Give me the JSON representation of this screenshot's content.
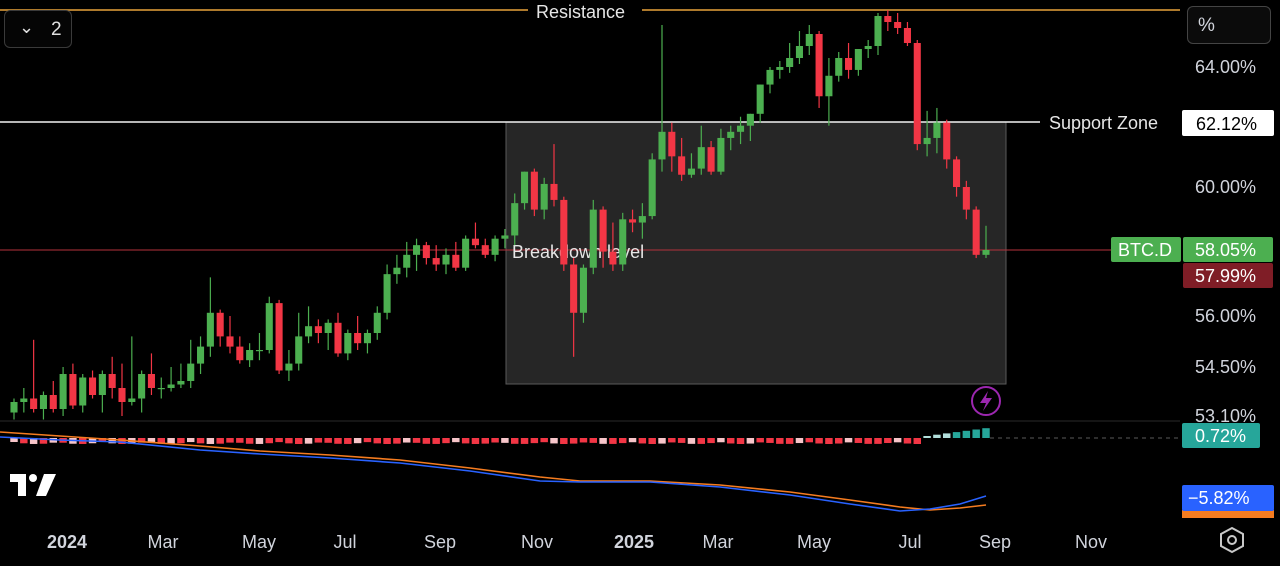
{
  "ui": {
    "collapse_count": "2",
    "percent_toggle": "%",
    "icons": [
      "chevron-down-icon",
      "tradingview-logo-icon",
      "lightning-icon",
      "settings-hexagon-icon"
    ]
  },
  "chart_data": {
    "type": "candlestick",
    "symbol": "BTC.D",
    "unit": "%",
    "x_ticks": [
      "2024",
      "Mar",
      "May",
      "Jul",
      "Sep",
      "Nov",
      "2025",
      "Mar",
      "May",
      "Jul",
      "Sep",
      "Nov"
    ],
    "price_ticks": [
      "64.00%",
      "60.00%",
      "56.00%",
      "54.50%",
      "53.10%"
    ],
    "price_tick_values": [
      64.0,
      60.0,
      56.0,
      54.5,
      53.1
    ],
    "y_range_pct": [
      53.1,
      65.9
    ],
    "grid": false,
    "annotations": {
      "resistance": {
        "label": "Resistance",
        "value_pct": 65.9
      },
      "support": {
        "label": "Support Zone",
        "value_pct": 62.12,
        "badge": "62.12%"
      },
      "breakdown": {
        "label": "Breakdown level",
        "value_pct": 58.05
      },
      "current": {
        "label": "BTC.D",
        "value": "58.05%",
        "prev_close": "57.99%"
      },
      "zone_box": {
        "from": "2024-10-07",
        "to": "2025-09-08",
        "top_pct": 62.12,
        "bottom_pct": 54.2
      }
    },
    "candles_weekly": [
      {
        "o": 53.2,
        "h": 53.6,
        "l": 53.0,
        "c": 53.5
      },
      {
        "o": 53.5,
        "h": 53.9,
        "l": 53.2,
        "c": 53.6
      },
      {
        "o": 53.6,
        "h": 55.3,
        "l": 53.2,
        "c": 53.3
      },
      {
        "o": 53.3,
        "h": 53.8,
        "l": 53.0,
        "c": 53.7
      },
      {
        "o": 53.7,
        "h": 54.1,
        "l": 53.2,
        "c": 53.3
      },
      {
        "o": 53.3,
        "h": 54.5,
        "l": 53.1,
        "c": 54.3
      },
      {
        "o": 54.3,
        "h": 54.6,
        "l": 53.3,
        "c": 53.4
      },
      {
        "o": 53.4,
        "h": 54.3,
        "l": 53.2,
        "c": 54.2
      },
      {
        "o": 54.2,
        "h": 54.4,
        "l": 53.6,
        "c": 53.7
      },
      {
        "o": 53.7,
        "h": 54.4,
        "l": 53.2,
        "c": 54.3
      },
      {
        "o": 54.3,
        "h": 54.8,
        "l": 53.6,
        "c": 53.9
      },
      {
        "o": 53.9,
        "h": 54.6,
        "l": 53.1,
        "c": 53.5
      },
      {
        "o": 53.5,
        "h": 55.4,
        "l": 53.4,
        "c": 53.6
      },
      {
        "o": 53.6,
        "h": 54.4,
        "l": 53.2,
        "c": 54.3
      },
      {
        "o": 54.3,
        "h": 54.9,
        "l": 53.7,
        "c": 53.9
      },
      {
        "o": 53.9,
        "h": 54.2,
        "l": 53.6,
        "c": 53.9
      },
      {
        "o": 53.9,
        "h": 54.5,
        "l": 53.8,
        "c": 54.0
      },
      {
        "o": 54.0,
        "h": 54.6,
        "l": 53.9,
        "c": 54.1
      },
      {
        "o": 54.1,
        "h": 55.3,
        "l": 53.9,
        "c": 54.6
      },
      {
        "o": 54.6,
        "h": 55.4,
        "l": 54.3,
        "c": 55.1
      },
      {
        "o": 55.1,
        "h": 57.2,
        "l": 54.8,
        "c": 56.1
      },
      {
        "o": 56.1,
        "h": 56.2,
        "l": 55.1,
        "c": 55.4
      },
      {
        "o": 55.4,
        "h": 56.0,
        "l": 54.9,
        "c": 55.1
      },
      {
        "o": 55.1,
        "h": 55.4,
        "l": 54.6,
        "c": 54.7
      },
      {
        "o": 54.7,
        "h": 55.2,
        "l": 54.5,
        "c": 55.0
      },
      {
        "o": 55.0,
        "h": 55.5,
        "l": 54.7,
        "c": 55.0
      },
      {
        "o": 55.0,
        "h": 56.6,
        "l": 54.9,
        "c": 56.4
      },
      {
        "o": 56.4,
        "h": 56.5,
        "l": 54.3,
        "c": 54.4
      },
      {
        "o": 54.4,
        "h": 55.0,
        "l": 54.1,
        "c": 54.6
      },
      {
        "o": 54.6,
        "h": 56.1,
        "l": 54.4,
        "c": 55.4
      },
      {
        "o": 55.4,
        "h": 56.3,
        "l": 55.2,
        "c": 55.7
      },
      {
        "o": 55.7,
        "h": 55.9,
        "l": 55.2,
        "c": 55.5
      },
      {
        "o": 55.5,
        "h": 55.9,
        "l": 55.0,
        "c": 55.8
      },
      {
        "o": 55.8,
        "h": 56.1,
        "l": 54.8,
        "c": 54.9
      },
      {
        "o": 54.9,
        "h": 55.6,
        "l": 54.7,
        "c": 55.5
      },
      {
        "o": 55.5,
        "h": 56.0,
        "l": 55.0,
        "c": 55.2
      },
      {
        "o": 55.2,
        "h": 55.6,
        "l": 54.9,
        "c": 55.5
      },
      {
        "o": 55.5,
        "h": 56.3,
        "l": 55.3,
        "c": 56.1
      },
      {
        "o": 56.1,
        "h": 57.6,
        "l": 55.9,
        "c": 57.3
      },
      {
        "o": 57.3,
        "h": 57.9,
        "l": 57.0,
        "c": 57.5
      },
      {
        "o": 57.5,
        "h": 58.3,
        "l": 57.2,
        "c": 57.9
      },
      {
        "o": 57.9,
        "h": 58.4,
        "l": 57.4,
        "c": 58.2
      },
      {
        "o": 58.2,
        "h": 58.3,
        "l": 57.6,
        "c": 57.8
      },
      {
        "o": 57.8,
        "h": 58.2,
        "l": 57.4,
        "c": 57.6
      },
      {
        "o": 57.6,
        "h": 58.1,
        "l": 57.3,
        "c": 57.9
      },
      {
        "o": 57.9,
        "h": 58.3,
        "l": 57.4,
        "c": 57.5
      },
      {
        "o": 57.5,
        "h": 58.5,
        "l": 57.4,
        "c": 58.4
      },
      {
        "o": 58.4,
        "h": 58.9,
        "l": 58.1,
        "c": 58.2
      },
      {
        "o": 58.2,
        "h": 58.4,
        "l": 57.8,
        "c": 57.9
      },
      {
        "o": 57.9,
        "h": 58.5,
        "l": 57.7,
        "c": 58.4
      },
      {
        "o": 58.4,
        "h": 58.7,
        "l": 58.1,
        "c": 58.5
      },
      {
        "o": 58.5,
        "h": 59.8,
        "l": 58.2,
        "c": 59.5
      },
      {
        "o": 59.5,
        "h": 60.5,
        "l": 59.3,
        "c": 60.5
      },
      {
        "o": 60.5,
        "h": 60.6,
        "l": 59.1,
        "c": 59.3
      },
      {
        "o": 59.3,
        "h": 60.3,
        "l": 59.0,
        "c": 60.1
      },
      {
        "o": 60.1,
        "h": 61.4,
        "l": 59.4,
        "c": 59.6
      },
      {
        "o": 59.6,
        "h": 59.7,
        "l": 57.4,
        "c": 57.6
      },
      {
        "o": 57.6,
        "h": 57.8,
        "l": 54.8,
        "c": 56.1
      },
      {
        "o": 56.1,
        "h": 57.6,
        "l": 55.8,
        "c": 57.5
      },
      {
        "o": 57.5,
        "h": 59.6,
        "l": 57.3,
        "c": 59.3
      },
      {
        "o": 59.3,
        "h": 59.4,
        "l": 57.5,
        "c": 58.0
      },
      {
        "o": 58.0,
        "h": 58.9,
        "l": 57.4,
        "c": 57.6
      },
      {
        "o": 57.6,
        "h": 59.2,
        "l": 57.4,
        "c": 59.0
      },
      {
        "o": 59.0,
        "h": 59.3,
        "l": 58.6,
        "c": 58.9
      },
      {
        "o": 58.9,
        "h": 59.5,
        "l": 58.4,
        "c": 59.1
      },
      {
        "o": 59.1,
        "h": 61.1,
        "l": 59.0,
        "c": 60.9
      },
      {
        "o": 60.9,
        "h": 65.4,
        "l": 60.5,
        "c": 61.8
      },
      {
        "o": 61.8,
        "h": 62.1,
        "l": 60.5,
        "c": 61.0
      },
      {
        "o": 61.0,
        "h": 61.6,
        "l": 60.2,
        "c": 60.4
      },
      {
        "o": 60.4,
        "h": 61.1,
        "l": 60.3,
        "c": 60.6
      },
      {
        "o": 60.6,
        "h": 62.0,
        "l": 60.4,
        "c": 61.3
      },
      {
        "o": 61.3,
        "h": 61.5,
        "l": 60.4,
        "c": 60.5
      },
      {
        "o": 60.5,
        "h": 61.9,
        "l": 60.4,
        "c": 61.6
      },
      {
        "o": 61.6,
        "h": 62.0,
        "l": 61.2,
        "c": 61.8
      },
      {
        "o": 61.8,
        "h": 62.3,
        "l": 61.4,
        "c": 62.0
      },
      {
        "o": 62.0,
        "h": 62.4,
        "l": 61.5,
        "c": 62.4
      },
      {
        "o": 62.4,
        "h": 63.4,
        "l": 62.1,
        "c": 63.4
      },
      {
        "o": 63.4,
        "h": 64.0,
        "l": 63.1,
        "c": 63.9
      },
      {
        "o": 63.9,
        "h": 64.2,
        "l": 63.6,
        "c": 64.0
      },
      {
        "o": 64.0,
        "h": 64.8,
        "l": 63.8,
        "c": 64.3
      },
      {
        "o": 64.3,
        "h": 65.2,
        "l": 64.1,
        "c": 64.7
      },
      {
        "o": 64.7,
        "h": 65.4,
        "l": 64.4,
        "c": 65.1
      },
      {
        "o": 65.1,
        "h": 65.2,
        "l": 62.6,
        "c": 63.0
      },
      {
        "o": 63.0,
        "h": 64.3,
        "l": 62.0,
        "c": 63.7
      },
      {
        "o": 63.7,
        "h": 64.5,
        "l": 63.5,
        "c": 64.3
      },
      {
        "o": 64.3,
        "h": 64.8,
        "l": 63.6,
        "c": 63.9
      },
      {
        "o": 63.9,
        "h": 64.6,
        "l": 63.7,
        "c": 64.6
      },
      {
        "o": 64.6,
        "h": 64.9,
        "l": 64.3,
        "c": 64.7
      },
      {
        "o": 64.7,
        "h": 65.8,
        "l": 64.4,
        "c": 65.7
      },
      {
        "o": 65.7,
        "h": 65.9,
        "l": 65.2,
        "c": 65.5
      },
      {
        "o": 65.5,
        "h": 65.8,
        "l": 65.1,
        "c": 65.3
      },
      {
        "o": 65.3,
        "h": 65.5,
        "l": 64.7,
        "c": 64.8
      },
      {
        "o": 64.8,
        "h": 64.9,
        "l": 61.2,
        "c": 61.4
      },
      {
        "o": 61.4,
        "h": 62.5,
        "l": 61.0,
        "c": 61.6
      },
      {
        "o": 61.6,
        "h": 62.6,
        "l": 61.1,
        "c": 62.1
      },
      {
        "o": 62.1,
        "h": 62.2,
        "l": 60.6,
        "c": 60.9
      },
      {
        "o": 60.9,
        "h": 61.0,
        "l": 59.7,
        "c": 60.0
      },
      {
        "o": 60.0,
        "h": 60.2,
        "l": 59.0,
        "c": 59.3
      },
      {
        "o": 59.3,
        "h": 59.4,
        "l": 57.8,
        "c": 57.9
      },
      {
        "o": 57.9,
        "h": 58.8,
        "l": 57.8,
        "c": 58.05
      }
    ],
    "indicator": {
      "histogram_badge": "0.72%",
      "value_badge": "−5.82%"
    }
  }
}
